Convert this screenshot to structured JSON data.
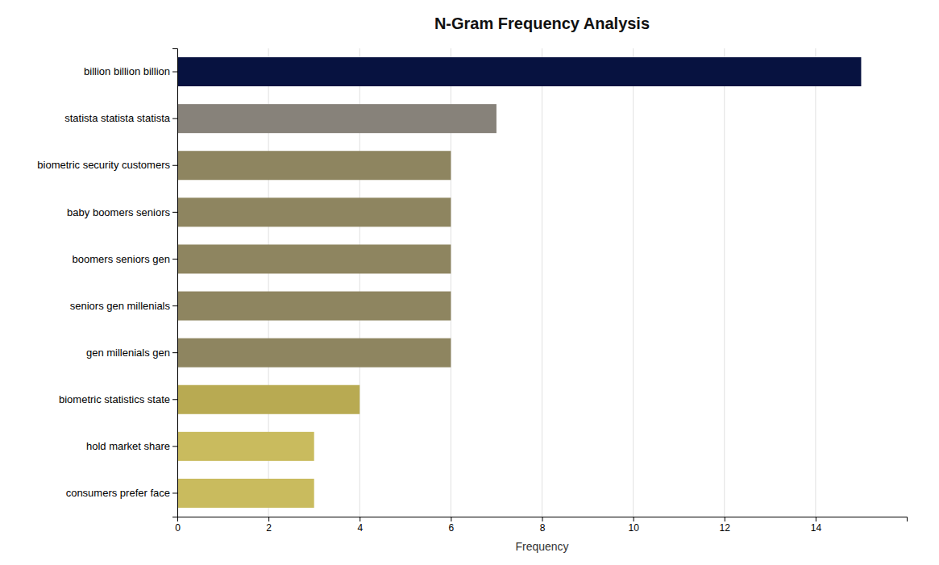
{
  "chart_data": {
    "type": "bar",
    "orientation": "horizontal",
    "title": "N-Gram Frequency Analysis",
    "categories": [
      "consumers prefer face",
      "hold market share",
      "biometric statistics state",
      "gen millenials gen",
      "seniors gen millenials",
      "boomers seniors gen",
      "baby boomers seniors",
      "biometric security customers",
      "statista statista statista",
      "billion billion billion"
    ],
    "values": [
      3,
      3,
      4,
      6,
      6,
      6,
      6,
      6,
      7,
      15
    ],
    "colors": [
      "#c9bb5e",
      "#c9bb5e",
      "#b8aa52",
      "#8e8560",
      "#8e8560",
      "#8e8560",
      "#8e8560",
      "#8e8560",
      "#87827a",
      "#071240"
    ],
    "xlabel": "Frequency",
    "xlim": [
      0,
      16
    ],
    "xticks": [
      0,
      2,
      4,
      6,
      8,
      10,
      12,
      14
    ],
    "grid": true
  }
}
